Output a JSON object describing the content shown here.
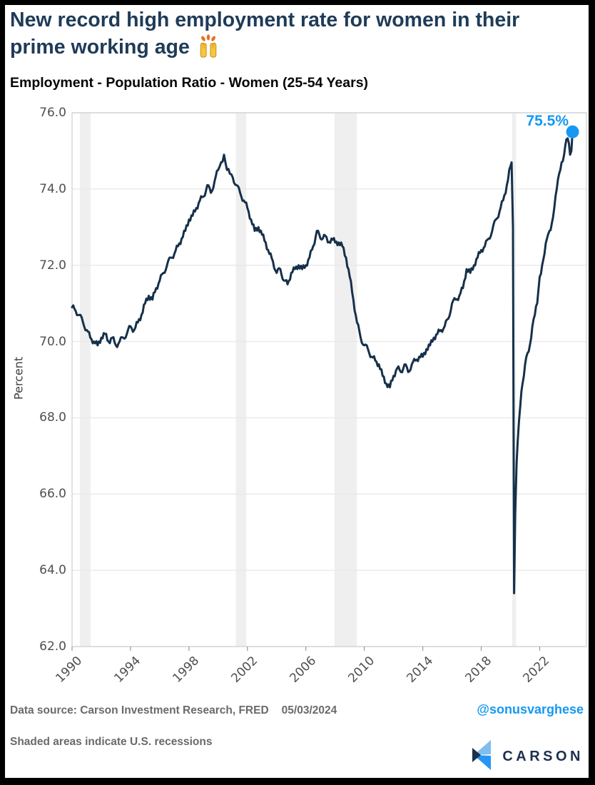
{
  "header": {
    "title_line1": "New record high employment rate for women in their",
    "title_line2": "prime working age",
    "title_emoji": "🙌",
    "subtitle": "Employment - Population Ratio - Women (25-54 Years)"
  },
  "footer": {
    "source": "Data source: Carson Investment Research, FRED",
    "date": "05/03/2024",
    "handle": "@sonusvarghese",
    "note": "Shaded areas indicate U.S. recessions",
    "logo_text": "CARSON"
  },
  "colors": {
    "accent": "#1698f2",
    "line": "#16304a",
    "title_navy": "#1f3b58",
    "grid": "#e9e9e9",
    "band": "#efefef",
    "spine": "#cfcfcf",
    "tick": "#999999"
  },
  "chart_data": {
    "type": "line",
    "title": "Employment - Population Ratio - Women (25-54 Years)",
    "xlabel": "",
    "ylabel": "Percent",
    "xlim": [
      1990,
      2025.2
    ],
    "ylim": [
      62.0,
      76.0
    ],
    "x_ticks": [
      "1990",
      "1994",
      "1998",
      "2002",
      "2006",
      "2010",
      "2014",
      "2018",
      "2022"
    ],
    "y_ticks": [
      "76.0",
      "74.0",
      "72.0",
      "70.0",
      "68.0",
      "66.0",
      "64.0",
      "62.0"
    ],
    "grid": true,
    "legend": "none",
    "end_label": "75.5%",
    "last_point": {
      "year": 2024.25,
      "value": 75.5
    },
    "recessions": [
      [
        1990.54,
        1991.26
      ],
      [
        2001.21,
        2001.92
      ],
      [
        2007.96,
        2009.49
      ],
      [
        2020.12,
        2020.38
      ]
    ],
    "noise_amplitude": 0.08,
    "points": [
      [
        1990.0,
        70.9
      ],
      [
        1990.25,
        70.8
      ],
      [
        1990.5,
        70.7
      ],
      [
        1990.75,
        70.5
      ],
      [
        1991.0,
        70.3
      ],
      [
        1991.25,
        70.1
      ],
      [
        1991.5,
        70.0
      ],
      [
        1991.75,
        69.9
      ],
      [
        1992.0,
        70.1
      ],
      [
        1992.25,
        70.2
      ],
      [
        1992.5,
        70.0
      ],
      [
        1992.75,
        70.1
      ],
      [
        1993.0,
        69.9
      ],
      [
        1993.25,
        70.0
      ],
      [
        1993.5,
        70.1
      ],
      [
        1993.75,
        70.2
      ],
      [
        1994.0,
        70.4
      ],
      [
        1994.25,
        70.3
      ],
      [
        1994.5,
        70.5
      ],
      [
        1994.75,
        70.7
      ],
      [
        1995.0,
        71.0
      ],
      [
        1995.25,
        71.2
      ],
      [
        1995.5,
        71.1
      ],
      [
        1995.75,
        71.4
      ],
      [
        1996.0,
        71.6
      ],
      [
        1996.25,
        71.8
      ],
      [
        1996.5,
        72.0
      ],
      [
        1996.75,
        72.2
      ],
      [
        1997.0,
        72.3
      ],
      [
        1997.25,
        72.5
      ],
      [
        1997.5,
        72.7
      ],
      [
        1997.75,
        72.9
      ],
      [
        1998.0,
        73.2
      ],
      [
        1998.25,
        73.3
      ],
      [
        1998.5,
        73.5
      ],
      [
        1998.75,
        73.7
      ],
      [
        1999.0,
        73.8
      ],
      [
        1999.25,
        74.1
      ],
      [
        1999.5,
        73.9
      ],
      [
        1999.75,
        74.2
      ],
      [
        2000.0,
        74.5
      ],
      [
        2000.2,
        74.7
      ],
      [
        2000.4,
        74.9
      ],
      [
        2000.6,
        74.5
      ],
      [
        2000.8,
        74.4
      ],
      [
        2001.0,
        74.3
      ],
      [
        2001.25,
        74.1
      ],
      [
        2001.5,
        73.9
      ],
      [
        2001.75,
        73.7
      ],
      [
        2002.0,
        73.5
      ],
      [
        2002.25,
        73.2
      ],
      [
        2002.5,
        72.9
      ],
      [
        2002.75,
        73.0
      ],
      [
        2003.0,
        72.8
      ],
      [
        2003.25,
        72.6
      ],
      [
        2003.5,
        72.3
      ],
      [
        2003.75,
        72.1
      ],
      [
        2004.0,
        71.8
      ],
      [
        2004.25,
        71.9
      ],
      [
        2004.5,
        71.6
      ],
      [
        2004.75,
        71.5
      ],
      [
        2005.0,
        71.8
      ],
      [
        2005.25,
        71.9
      ],
      [
        2005.5,
        72.0
      ],
      [
        2005.75,
        71.9
      ],
      [
        2006.0,
        72.0
      ],
      [
        2006.25,
        72.2
      ],
      [
        2006.5,
        72.5
      ],
      [
        2006.75,
        72.9
      ],
      [
        2007.0,
        72.7
      ],
      [
        2007.25,
        72.8
      ],
      [
        2007.5,
        72.6
      ],
      [
        2007.75,
        72.7
      ],
      [
        2008.0,
        72.6
      ],
      [
        2008.25,
        72.6
      ],
      [
        2008.5,
        72.5
      ],
      [
        2008.75,
        72.2
      ],
      [
        2009.0,
        71.7
      ],
      [
        2009.25,
        71.1
      ],
      [
        2009.5,
        70.5
      ],
      [
        2009.75,
        70.1
      ],
      [
        2010.0,
        69.9
      ],
      [
        2010.25,
        69.8
      ],
      [
        2010.5,
        69.6
      ],
      [
        2010.75,
        69.5
      ],
      [
        2011.0,
        69.4
      ],
      [
        2011.25,
        69.1
      ],
      [
        2011.5,
        68.9
      ],
      [
        2011.75,
        68.8
      ],
      [
        2012.0,
        69.1
      ],
      [
        2012.25,
        69.3
      ],
      [
        2012.5,
        69.2
      ],
      [
        2012.75,
        69.4
      ],
      [
        2013.0,
        69.2
      ],
      [
        2013.25,
        69.4
      ],
      [
        2013.5,
        69.5
      ],
      [
        2013.75,
        69.6
      ],
      [
        2014.0,
        69.6
      ],
      [
        2014.25,
        69.8
      ],
      [
        2014.5,
        69.9
      ],
      [
        2014.75,
        70.1
      ],
      [
        2015.0,
        70.2
      ],
      [
        2015.25,
        70.3
      ],
      [
        2015.5,
        70.4
      ],
      [
        2015.75,
        70.6
      ],
      [
        2016.0,
        71.0
      ],
      [
        2016.25,
        71.1
      ],
      [
        2016.5,
        71.2
      ],
      [
        2016.75,
        71.4
      ],
      [
        2017.0,
        71.9
      ],
      [
        2017.25,
        71.8
      ],
      [
        2017.5,
        72.0
      ],
      [
        2017.75,
        72.2
      ],
      [
        2018.0,
        72.4
      ],
      [
        2018.25,
        72.5
      ],
      [
        2018.5,
        72.7
      ],
      [
        2018.75,
        72.9
      ],
      [
        2019.0,
        73.2
      ],
      [
        2019.25,
        73.4
      ],
      [
        2019.5,
        73.7
      ],
      [
        2019.75,
        74.1
      ],
      [
        2020.0,
        74.6
      ],
      [
        2020.08,
        74.7
      ],
      [
        2020.17,
        73.0
      ],
      [
        2020.25,
        63.4
      ],
      [
        2020.33,
        65.5
      ],
      [
        2020.42,
        66.8
      ],
      [
        2020.5,
        67.4
      ],
      [
        2020.58,
        67.9
      ],
      [
        2020.67,
        68.3
      ],
      [
        2020.75,
        68.7
      ],
      [
        2020.83,
        68.9
      ],
      [
        2020.92,
        69.1
      ],
      [
        2021.0,
        69.4
      ],
      [
        2021.17,
        69.7
      ],
      [
        2021.33,
        69.9
      ],
      [
        2021.5,
        70.4
      ],
      [
        2021.67,
        70.7
      ],
      [
        2021.83,
        71.0
      ],
      [
        2022.0,
        71.7
      ],
      [
        2022.17,
        72.0
      ],
      [
        2022.33,
        72.3
      ],
      [
        2022.5,
        72.7
      ],
      [
        2022.67,
        72.9
      ],
      [
        2022.83,
        73.1
      ],
      [
        2023.0,
        73.5
      ],
      [
        2023.17,
        74.0
      ],
      [
        2023.33,
        74.4
      ],
      [
        2023.5,
        74.7
      ],
      [
        2023.67,
        74.9
      ],
      [
        2023.83,
        75.3
      ],
      [
        2024.0,
        75.2
      ],
      [
        2024.08,
        74.9
      ],
      [
        2024.17,
        75.0
      ],
      [
        2024.25,
        75.5
      ]
    ]
  }
}
